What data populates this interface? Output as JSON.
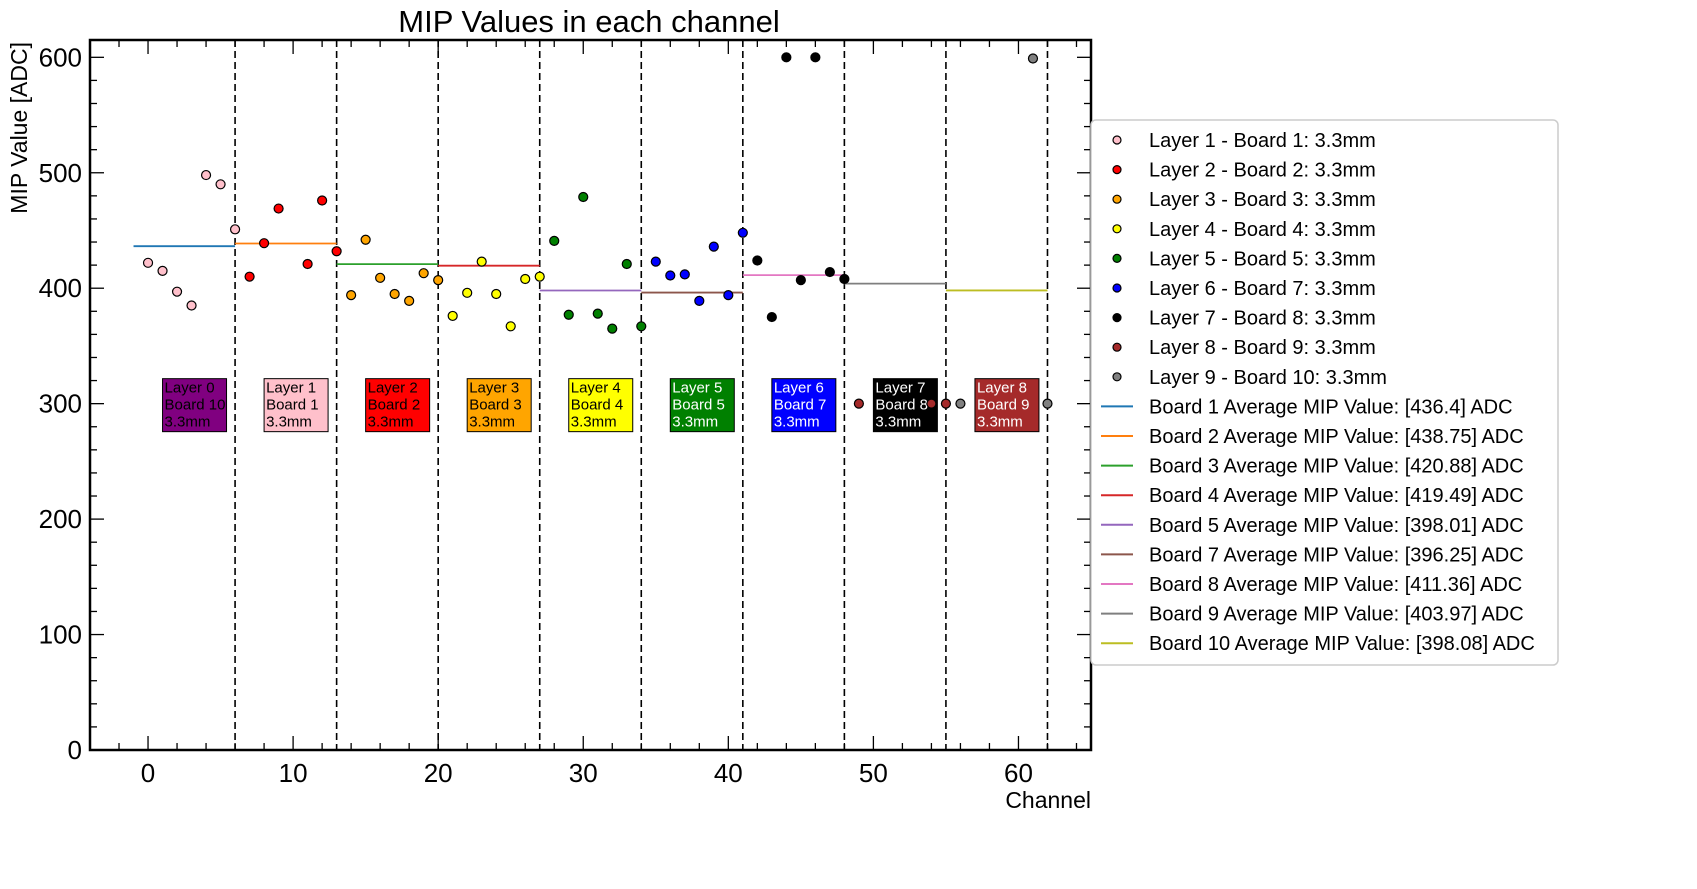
{
  "chart_data": {
    "type": "scatter",
    "title": "MIP Values in each channel",
    "xlabel": "Channel",
    "ylabel": "MIP Value [ADC]",
    "xlim": [
      -4,
      65
    ],
    "ylim": [
      0,
      615
    ],
    "xticks": [
      0,
      10,
      20,
      30,
      40,
      50,
      60
    ],
    "yticks": [
      0,
      100,
      200,
      300,
      400,
      500,
      600
    ],
    "grid": false,
    "legend_position": "right",
    "boundaries": [
      6,
      13,
      20,
      27,
      34,
      41,
      48,
      55,
      62
    ],
    "series": [
      {
        "name": "Layer 1 - Board 1: 3.3mm",
        "color": "#ffc0cb",
        "x": [
          0,
          1,
          2,
          3,
          4,
          5,
          6
        ],
        "y": [
          422,
          415,
          397,
          385,
          498,
          490,
          451
        ]
      },
      {
        "name": "Layer 2 - Board 2: 3.3mm",
        "color": "#ff0000",
        "x": [
          7,
          8,
          9,
          11,
          12,
          13
        ],
        "y": [
          410,
          439,
          469,
          421,
          476,
          432
        ]
      },
      {
        "name": "Layer 3 - Board 3: 3.3mm",
        "color": "#ffa500",
        "x": [
          14,
          15,
          16,
          17,
          18,
          19,
          20
        ],
        "y": [
          394,
          442,
          409,
          395,
          389,
          413,
          407
        ]
      },
      {
        "name": "Layer 4 - Board 4: 3.3mm",
        "color": "#ffff00",
        "x": [
          21,
          22,
          23,
          24,
          25,
          26,
          27
        ],
        "y": [
          376,
          396,
          423,
          395,
          367,
          408,
          410
        ]
      },
      {
        "name": "Layer 5 - Board 5: 3.3mm",
        "color": "#008000",
        "x": [
          28,
          29,
          30,
          31,
          32,
          33,
          34
        ],
        "y": [
          441,
          377,
          479,
          378,
          365,
          421,
          367
        ]
      },
      {
        "name": "Layer 6 - Board 7: 3.3mm",
        "color": "#0000ff",
        "x": [
          35,
          36,
          37,
          38,
          39,
          40,
          41
        ],
        "y": [
          423,
          411,
          412,
          389,
          436,
          394,
          448
        ]
      },
      {
        "name": "Layer 7 - Board 8: 3.3mm",
        "color": "#000000",
        "x": [
          42,
          43,
          44,
          45,
          46,
          47,
          48
        ],
        "y": [
          424,
          375,
          600,
          407,
          600,
          414,
          408
        ]
      },
      {
        "name": "Layer 8 - Board 9: 3.3mm",
        "color": "#a52a2a",
        "x": [
          49,
          54,
          55
        ],
        "y": [
          300,
          300,
          300
        ]
      },
      {
        "name": "Layer 9 - Board 10: 3.3mm",
        "color": "#808080",
        "x": [
          56,
          61,
          62
        ],
        "y": [
          300,
          599,
          300
        ]
      }
    ],
    "averages": [
      {
        "name": "Board 1 Average MIP Value: [436.4] ADC",
        "color": "#1f77b4",
        "x": [
          -1,
          6
        ],
        "value": 436.4
      },
      {
        "name": "Board 2 Average MIP Value: [438.75] ADC",
        "color": "#ff7f0e",
        "x": [
          6,
          13
        ],
        "value": 438.75
      },
      {
        "name": "Board 3 Average MIP Value: [420.88] ADC",
        "color": "#2ca02c",
        "x": [
          13,
          20
        ],
        "value": 420.88
      },
      {
        "name": "Board 4 Average MIP Value: [419.49] ADC",
        "color": "#d62728",
        "x": [
          20,
          27
        ],
        "value": 419.49
      },
      {
        "name": "Board 5 Average MIP Value: [398.01] ADC",
        "color": "#9467bd",
        "x": [
          27,
          34
        ],
        "value": 398.01
      },
      {
        "name": "Board 7 Average MIP Value: [396.25] ADC",
        "color": "#8c564b",
        "x": [
          34,
          41
        ],
        "value": 396.25
      },
      {
        "name": "Board 8 Average MIP Value: [411.36] ADC",
        "color": "#e377c2",
        "x": [
          41,
          48
        ],
        "value": 411.36
      },
      {
        "name": "Board 9 Average MIP Value: [403.97] ADC",
        "color": "#7f7f7f",
        "x": [
          48,
          55
        ],
        "value": 403.97
      },
      {
        "name": "Board 10 Average MIP Value: [398.08] ADC",
        "color": "#bcbd22",
        "x": [
          55,
          62
        ],
        "value": 398.08
      }
    ],
    "annotations": [
      {
        "lines": [
          "Layer 0",
          "Board 10",
          "3.3mm"
        ],
        "x": 1,
        "y": 300,
        "bg": "#800080",
        "fg": "#000000"
      },
      {
        "lines": [
          "Layer 1",
          "Board 1",
          "3.3mm"
        ],
        "x": 8,
        "y": 300,
        "bg": "#ffc0cb",
        "fg": "#000000"
      },
      {
        "lines": [
          "Layer 2",
          "Board 2",
          "3.3mm"
        ],
        "x": 15,
        "y": 300,
        "bg": "#ff0000",
        "fg": "#000000"
      },
      {
        "lines": [
          "Layer 3",
          "Board 3",
          "3.3mm"
        ],
        "x": 22,
        "y": 300,
        "bg": "#ffa500",
        "fg": "#000000"
      },
      {
        "lines": [
          "Layer 4",
          "Board 4",
          "3.3mm"
        ],
        "x": 29,
        "y": 300,
        "bg": "#ffff00",
        "fg": "#000000"
      },
      {
        "lines": [
          "Layer 5",
          "Board 5",
          "3.3mm"
        ],
        "x": 36,
        "y": 300,
        "bg": "#008000",
        "fg": "#ffffff"
      },
      {
        "lines": [
          "Layer 6",
          "Board 7",
          "3.3mm"
        ],
        "x": 43,
        "y": 300,
        "bg": "#0000ff",
        "fg": "#ffffff"
      },
      {
        "lines": [
          "Layer 7",
          "Board 8",
          "3.3mm"
        ],
        "x": 50,
        "y": 300,
        "bg": "#000000",
        "fg": "#ffffff"
      },
      {
        "lines": [
          "Layer 8",
          "Board 9",
          "3.3mm"
        ],
        "x": 57,
        "y": 300,
        "bg": "#a52a2a",
        "fg": "#ffffff"
      }
    ]
  }
}
